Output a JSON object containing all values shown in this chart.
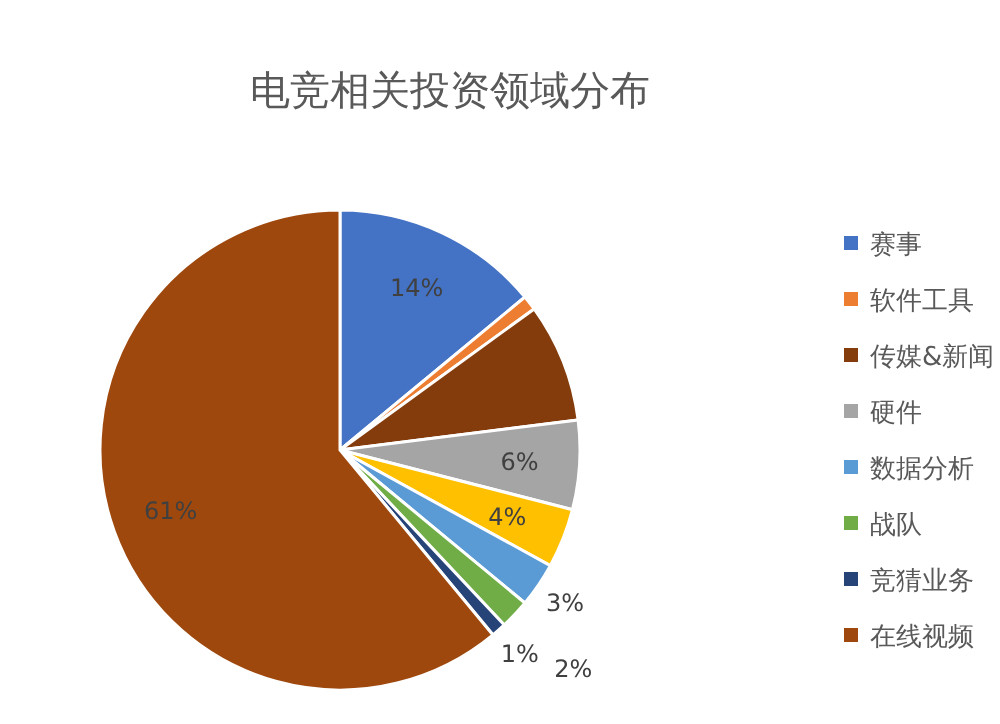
{
  "chart_data": {
    "type": "pie",
    "title": "电竞相关投资领域分布",
    "categories": [
      "赛事",
      "软件工具",
      "传媒&新闻",
      "硬件",
      null,
      "数据分析",
      "战队",
      "竞猜业务",
      "在线视频"
    ],
    "values": [
      14,
      1,
      8,
      6,
      4,
      3,
      2,
      1,
      61
    ],
    "value_labels": [
      "14%",
      null,
      null,
      "6%",
      "4%",
      "3%",
      "2%",
      "1%",
      "61%"
    ],
    "colors": [
      "#4472c4",
      "#ed7d31",
      "#843c0c",
      "#a5a5a5",
      "#ffc000",
      "#5b9bd5",
      "#70ad47",
      "#264478",
      "#9e480e"
    ],
    "legend": "right"
  }
}
